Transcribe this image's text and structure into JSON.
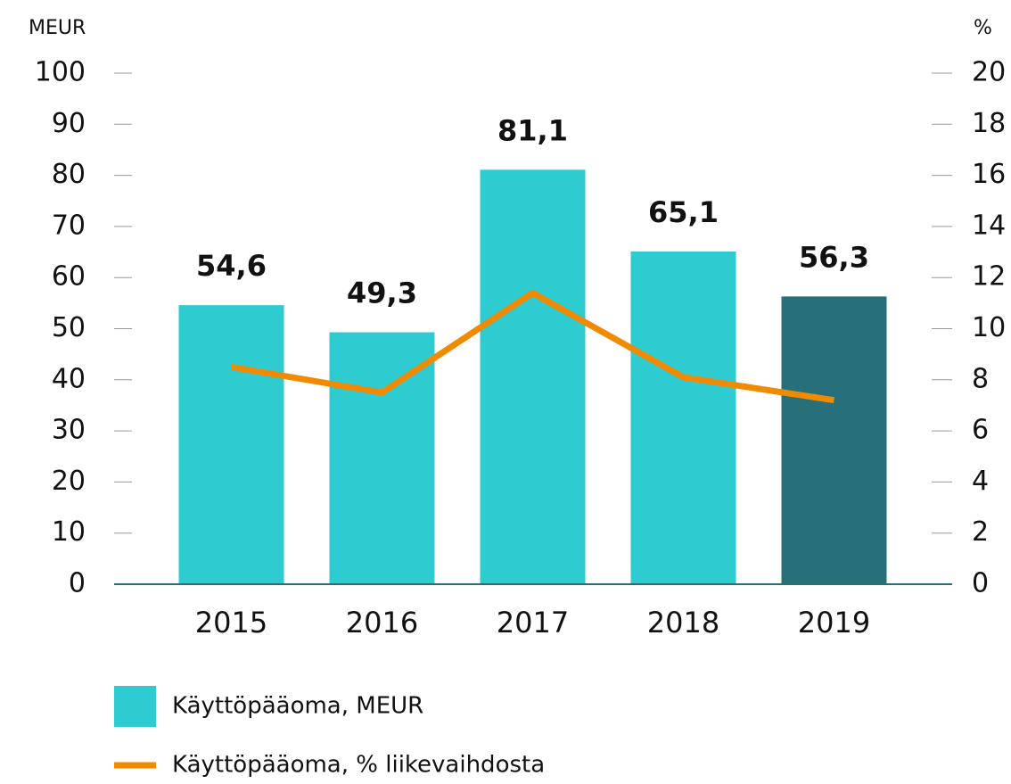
{
  "chart_data": {
    "type": "bar",
    "ylabel": "MEUR",
    "y2label": "%",
    "categories": [
      "2015",
      "2016",
      "2017",
      "2018",
      "2019"
    ],
    "series": [
      {
        "name": "Käyttöpääoma, MEUR",
        "type": "bar",
        "color": "#2ecbd1",
        "colors": [
          "#2ecbd1",
          "#2ecbd1",
          "#2ecbd1",
          "#2ecbd1",
          "#277079"
        ],
        "values": [
          54.6,
          49.3,
          81.1,
          65.1,
          56.3
        ],
        "value_labels": [
          "54,6",
          "49,3",
          "81,1",
          "65,1",
          "56,3"
        ]
      },
      {
        "name": "Käyttöpääoma, % liikevaihdosta",
        "type": "line",
        "color": "#f08a00",
        "axis": "y2",
        "values": [
          8.5,
          7.5,
          11.4,
          8.1,
          7.2
        ]
      }
    ],
    "ylim": [
      0,
      100
    ],
    "yticks": [
      0,
      10,
      20,
      30,
      40,
      50,
      60,
      70,
      80,
      90,
      100
    ],
    "y2lim": [
      0,
      20
    ],
    "y2ticks": [
      0,
      2,
      4,
      6,
      8,
      10,
      12,
      14,
      16,
      18,
      20
    ]
  }
}
